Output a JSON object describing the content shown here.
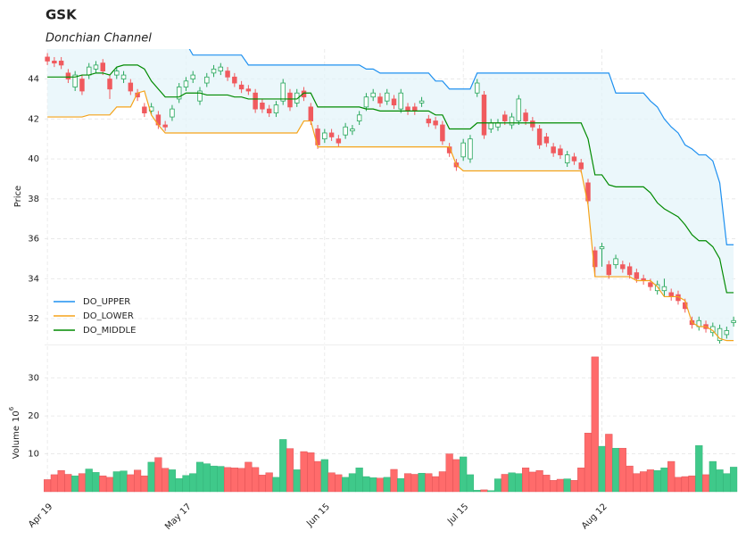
{
  "chart_data": {
    "type": "candlestick",
    "title": "GSK",
    "subtitle": "Donchian Channel",
    "ylabel": "Price",
    "xlim": [
      -0.4,
      99.5
    ],
    "xticks": [
      {
        "value": 0,
        "label": "Apr 19"
      },
      {
        "value": 20,
        "label": "May 17"
      },
      {
        "value": 40,
        "label": "Jun 15"
      },
      {
        "value": 60,
        "label": "Jul 15"
      },
      {
        "value": 80,
        "label": "Aug 12"
      }
    ],
    "ylim": [
      30.75,
      45.5
    ],
    "yticks": [
      32,
      34,
      36,
      38,
      40,
      42,
      44
    ],
    "grid": true,
    "legend": "lower left",
    "up_color": "#26a65b",
    "down_color": "#f05a5e",
    "channel_fill": "#e3f3fa",
    "open": [
      45.1,
      44.9,
      44.9,
      44.3,
      43.6,
      44.0,
      44.2,
      44.5,
      44.8,
      44.0,
      44.2,
      44.0,
      43.8,
      43.3,
      42.6,
      42.4,
      42.2,
      41.7,
      42.1,
      43.0,
      43.6,
      44.0,
      42.9,
      43.8,
      44.3,
      44.4,
      44.4,
      44.1,
      43.7,
      43.5,
      43.3,
      42.8,
      42.5,
      42.3,
      42.9,
      43.3,
      42.8,
      43.4,
      42.6,
      41.5,
      41.0,
      41.3,
      41.0,
      41.2,
      41.4,
      41.9,
      42.6,
      43.1,
      43.1,
      42.9,
      43.0,
      42.5,
      42.6,
      42.6,
      42.8,
      42.0,
      41.9,
      41.7,
      40.6,
      39.8,
      40.1,
      40.0,
      43.3,
      43.2,
      41.5,
      41.6,
      42.2,
      41.7,
      41.9,
      42.3,
      41.9,
      41.5,
      41.1,
      40.6,
      40.5,
      39.8,
      40.1,
      39.8,
      38.8,
      35.4,
      35.5,
      34.7,
      34.7,
      34.7,
      34.6,
      34.3,
      34.0,
      33.8,
      33.4,
      33.4,
      33.3,
      33.2,
      32.8,
      31.9,
      31.6,
      31.7,
      31.3,
      30.9,
      31.2,
      31.8
    ],
    "high": [
      45.3,
      45.1,
      45.1,
      44.5,
      44.4,
      44.2,
      44.8,
      44.9,
      45.0,
      44.2,
      44.6,
      44.4,
      44.0,
      43.5,
      42.8,
      42.8,
      42.4,
      41.9,
      42.7,
      43.8,
      44.1,
      44.4,
      43.6,
      44.3,
      44.7,
      44.8,
      44.6,
      44.3,
      43.9,
      43.7,
      43.5,
      43.0,
      42.7,
      42.9,
      44.0,
      43.5,
      43.5,
      43.6,
      42.8,
      41.7,
      41.5,
      41.5,
      41.2,
      41.8,
      41.7,
      42.4,
      43.3,
      43.5,
      43.3,
      43.5,
      43.2,
      43.5,
      42.8,
      42.8,
      43.1,
      42.2,
      42.1,
      41.9,
      40.8,
      40.0,
      41.0,
      41.2,
      44.0,
      43.4,
      42.0,
      42.0,
      42.4,
      42.3,
      43.2,
      42.5,
      42.1,
      41.7,
      41.3,
      40.8,
      40.7,
      40.4,
      40.3,
      40.0,
      39.0,
      35.6,
      35.8,
      34.9,
      35.2,
      34.9,
      34.8,
      34.5,
      34.2,
      34.0,
      33.9,
      34.0,
      33.5,
      33.4,
      33.0,
      32.1,
      32.1,
      31.9,
      31.8,
      31.7,
      31.6,
      32.1
    ],
    "low": [
      44.7,
      44.6,
      44.5,
      43.8,
      43.4,
      43.2,
      44.0,
      44.3,
      44.2,
      43.0,
      44.0,
      43.8,
      43.2,
      42.9,
      42.1,
      42.2,
      41.5,
      41.4,
      41.9,
      42.8,
      43.4,
      43.8,
      42.7,
      43.6,
      44.1,
      44.2,
      43.9,
      43.6,
      43.3,
      43.2,
      42.3,
      42.3,
      42.1,
      42.1,
      42.7,
      42.4,
      42.6,
      42.9,
      41.7,
      40.5,
      40.8,
      40.9,
      40.6,
      41.0,
      41.2,
      41.7,
      42.4,
      42.9,
      42.6,
      42.7,
      42.5,
      42.3,
      42.2,
      42.2,
      42.6,
      41.6,
      41.5,
      40.7,
      40.1,
      39.4,
      39.9,
      39.8,
      43.1,
      41.0,
      41.3,
      41.4,
      41.7,
      41.5,
      41.7,
      41.7,
      41.4,
      40.5,
      40.6,
      40.1,
      40.0,
      39.6,
      39.7,
      39.3,
      37.7,
      34.1,
      34.6,
      34.0,
      34.5,
      34.3,
      34.0,
      33.8,
      33.7,
      33.4,
      33.2,
      33.1,
      32.9,
      32.7,
      32.3,
      31.5,
      31.4,
      31.3,
      31.1,
      30.7,
      31.0,
      31.6
    ],
    "close": [
      44.9,
      44.8,
      44.7,
      44.0,
      44.2,
      43.4,
      44.6,
      44.7,
      44.4,
      43.5,
      44.4,
      44.2,
      43.4,
      43.1,
      42.3,
      42.6,
      41.7,
      41.6,
      42.5,
      43.6,
      43.9,
      44.2,
      43.4,
      44.1,
      44.5,
      44.6,
      44.1,
      43.8,
      43.5,
      43.4,
      42.5,
      42.5,
      42.3,
      42.7,
      43.8,
      42.6,
      43.3,
      43.1,
      41.9,
      40.7,
      41.3,
      41.1,
      40.8,
      41.6,
      41.5,
      42.2,
      43.1,
      43.3,
      42.8,
      43.3,
      42.7,
      43.3,
      42.4,
      42.4,
      42.9,
      41.8,
      41.7,
      40.9,
      40.3,
      39.6,
      40.8,
      41.0,
      43.8,
      41.2,
      41.8,
      41.8,
      41.9,
      42.1,
      43.0,
      41.9,
      41.6,
      40.7,
      40.8,
      40.3,
      40.2,
      40.2,
      39.9,
      39.5,
      37.9,
      34.6,
      35.6,
      34.2,
      35.0,
      34.5,
      34.2,
      34.0,
      33.9,
      33.6,
      33.7,
      33.6,
      33.1,
      32.9,
      32.5,
      31.7,
      31.9,
      31.5,
      31.6,
      31.5,
      31.4,
      31.9
    ],
    "series": [
      {
        "name": "DO_UPPER",
        "color": "#1e90f0",
        "values": [
          45.8,
          45.8,
          45.8,
          45.8,
          45.8,
          45.8,
          45.8,
          45.8,
          45.8,
          45.8,
          45.8,
          45.8,
          45.8,
          45.8,
          45.8,
          45.8,
          45.8,
          45.8,
          45.8,
          45.8,
          45.8,
          45.2,
          45.2,
          45.2,
          45.2,
          45.2,
          45.2,
          45.2,
          45.2,
          44.7,
          44.7,
          44.7,
          44.7,
          44.7,
          44.7,
          44.7,
          44.7,
          44.7,
          44.7,
          44.7,
          44.7,
          44.7,
          44.7,
          44.7,
          44.7,
          44.7,
          44.5,
          44.5,
          44.3,
          44.3,
          44.3,
          44.3,
          44.3,
          44.3,
          44.3,
          44.3,
          43.9,
          43.9,
          43.5,
          43.5,
          43.5,
          43.5,
          44.3,
          44.3,
          44.3,
          44.3,
          44.3,
          44.3,
          44.3,
          44.3,
          44.3,
          44.3,
          44.3,
          44.3,
          44.3,
          44.3,
          44.3,
          44.3,
          44.3,
          44.3,
          44.3,
          44.3,
          43.3,
          43.3,
          43.3,
          43.3,
          43.3,
          42.9,
          42.6,
          42.0,
          41.6,
          41.3,
          40.7,
          40.5,
          40.2,
          40.2,
          39.9,
          38.8,
          35.7,
          35.7
        ]
      },
      {
        "name": "DO_LOWER",
        "color": "#f5a31a",
        "values": [
          42.1,
          42.1,
          42.1,
          42.1,
          42.1,
          42.1,
          42.2,
          42.2,
          42.2,
          42.2,
          42.6,
          42.6,
          42.6,
          43.3,
          43.4,
          42.2,
          41.7,
          41.3,
          41.3,
          41.3,
          41.3,
          41.3,
          41.3,
          41.3,
          41.3,
          41.3,
          41.3,
          41.3,
          41.3,
          41.3,
          41.3,
          41.3,
          41.3,
          41.3,
          41.3,
          41.3,
          41.3,
          41.9,
          41.9,
          40.6,
          40.6,
          40.6,
          40.6,
          40.6,
          40.6,
          40.6,
          40.6,
          40.6,
          40.6,
          40.6,
          40.6,
          40.6,
          40.6,
          40.6,
          40.6,
          40.6,
          40.6,
          40.6,
          40.6,
          39.7,
          39.4,
          39.4,
          39.4,
          39.4,
          39.4,
          39.4,
          39.4,
          39.4,
          39.4,
          39.4,
          39.4,
          39.4,
          39.4,
          39.4,
          39.4,
          39.4,
          39.4,
          39.4,
          37.7,
          34.1,
          34.1,
          34.1,
          34.1,
          34.1,
          34.1,
          33.9,
          33.9,
          33.9,
          33.6,
          33.1,
          33.1,
          33.1,
          32.9,
          31.8,
          31.6,
          31.6,
          31.4,
          31.0,
          30.9,
          30.9
        ]
      },
      {
        "name": "DO_MIDDLE",
        "color": "#008a00",
        "values": [
          44.1,
          44.1,
          44.1,
          44.1,
          44.1,
          44.2,
          44.2,
          44.3,
          44.3,
          44.2,
          44.6,
          44.7,
          44.7,
          44.7,
          44.5,
          43.9,
          43.5,
          43.1,
          43.1,
          43.1,
          43.3,
          43.3,
          43.3,
          43.2,
          43.2,
          43.2,
          43.2,
          43.1,
          43.1,
          43.0,
          43.0,
          43.0,
          43.0,
          43.0,
          43.0,
          43.0,
          43.0,
          43.3,
          43.3,
          42.6,
          42.6,
          42.6,
          42.6,
          42.6,
          42.6,
          42.6,
          42.5,
          42.5,
          42.4,
          42.4,
          42.4,
          42.4,
          42.4,
          42.4,
          42.4,
          42.4,
          42.2,
          42.2,
          41.5,
          41.5,
          41.5,
          41.5,
          41.8,
          41.8,
          41.8,
          41.8,
          41.8,
          41.8,
          41.8,
          41.8,
          41.8,
          41.8,
          41.8,
          41.8,
          41.8,
          41.8,
          41.8,
          41.8,
          41.0,
          39.2,
          39.2,
          38.7,
          38.6,
          38.6,
          38.6,
          38.6,
          38.6,
          38.3,
          37.8,
          37.5,
          37.3,
          37.1,
          36.7,
          36.2,
          35.9,
          35.9,
          35.6,
          35.0,
          33.3,
          33.3
        ]
      }
    ],
    "volume": {
      "ylabel": "Volume",
      "scale_base": "10",
      "scale_exponent": "6",
      "ylim": [
        0,
        38.4
      ],
      "yticks": [
        10,
        20,
        30
      ],
      "values": [
        3.2,
        4.5,
        5.6,
        4.6,
        4.2,
        4.8,
        6.0,
        5.1,
        4.2,
        3.8,
        5.3,
        5.5,
        4.5,
        5.7,
        4.2,
        7.8,
        9.0,
        6.2,
        5.8,
        3.5,
        4.3,
        4.8,
        7.8,
        7.4,
        6.8,
        6.7,
        6.4,
        6.3,
        6.2,
        7.8,
        6.4,
        4.4,
        5.0,
        3.8,
        13.8,
        11.4,
        5.8,
        10.6,
        10.3,
        8.0,
        8.5,
        5.0,
        4.5,
        3.8,
        4.8,
        6.3,
        4.0,
        3.7,
        3.6,
        3.8,
        5.9,
        3.5,
        4.8,
        4.6,
        4.9,
        4.8,
        4.0,
        5.3,
        10.0,
        8.5,
        9.2,
        4.5,
        0.4,
        0.5,
        0.3,
        3.4,
        4.6,
        5.0,
        4.8,
        6.3,
        5.2,
        5.6,
        4.4,
        3.0,
        3.3,
        3.4,
        3.0,
        6.3,
        15.5,
        35.6,
        12.0,
        15.2,
        11.5,
        11.5,
        6.8,
        4.8,
        5.3,
        5.8,
        5.6,
        6.3,
        8.0,
        3.8,
        4.0,
        4.2,
        12.2,
        4.5,
        8.0,
        5.8,
        4.8,
        6.5
      ]
    }
  }
}
